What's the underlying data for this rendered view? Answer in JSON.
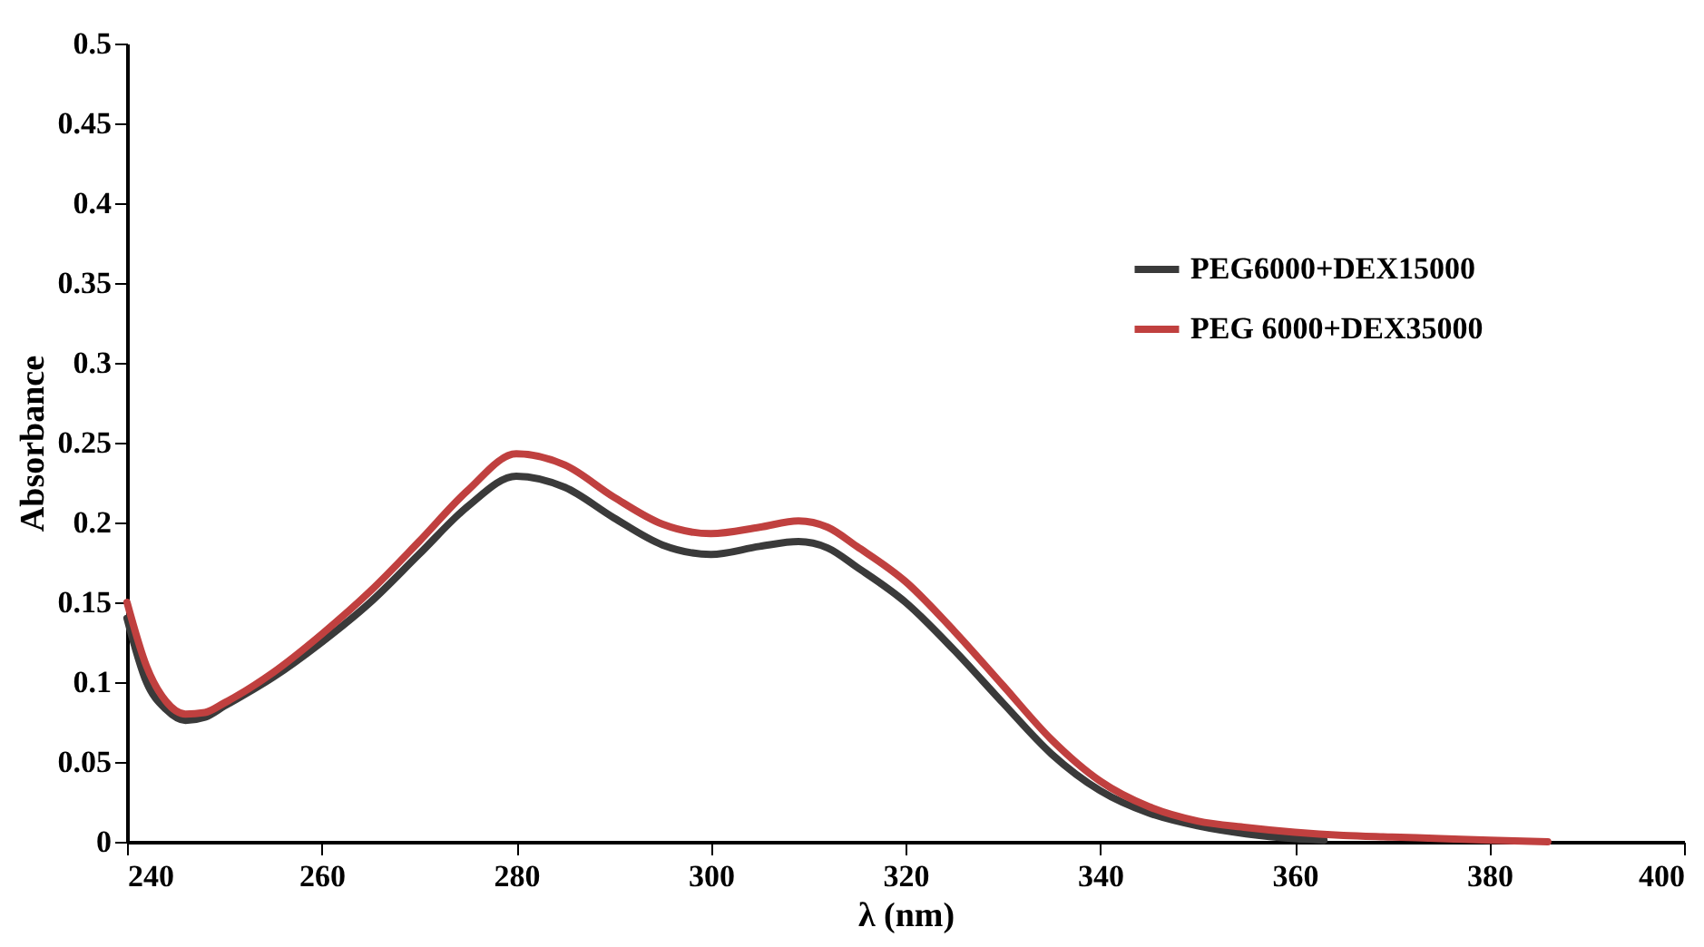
{
  "chart_data": {
    "type": "line",
    "xlabel": "λ (nm)",
    "ylabel": "Absorbance",
    "xlim": [
      240,
      400
    ],
    "xticks": [
      240,
      260,
      280,
      300,
      320,
      340,
      360,
      380,
      400
    ],
    "ylim": [
      0,
      0.5
    ],
    "yticks": [
      0,
      0.05,
      0.1,
      0.15,
      0.2,
      0.25,
      0.3,
      0.35,
      0.4,
      0.45,
      0.5
    ],
    "grid": false,
    "legend": "top right",
    "marker": "none",
    "line_style": "solid",
    "series": [
      {
        "name": "PEG6000+DEX15000",
        "color": "#3a3a3a",
        "x": [
          240,
          242,
          244,
          246,
          248,
          250,
          255,
          260,
          265,
          270,
          275,
          280,
          285,
          290,
          295,
          300,
          305,
          309,
          312,
          315,
          320,
          325,
          330,
          335,
          340,
          345,
          350,
          355,
          360,
          363
        ],
        "values": [
          0.14,
          0.1,
          0.083,
          0.076,
          0.078,
          0.085,
          0.103,
          0.125,
          0.15,
          0.18,
          0.21,
          0.229,
          0.222,
          0.203,
          0.186,
          0.18,
          0.185,
          0.188,
          0.184,
          0.172,
          0.15,
          0.12,
          0.087,
          0.055,
          0.032,
          0.018,
          0.01,
          0.005,
          0.002,
          0.001
        ]
      },
      {
        "name": "PEG 6000+DEX35000",
        "color": "#c0403f",
        "x": [
          240,
          242,
          244,
          246,
          248,
          250,
          255,
          260,
          265,
          270,
          275,
          280,
          285,
          290,
          295,
          300,
          305,
          309,
          312,
          315,
          320,
          325,
          330,
          335,
          340,
          345,
          350,
          355,
          360,
          365,
          370,
          375,
          380,
          386
        ],
        "values": [
          0.15,
          0.11,
          0.088,
          0.08,
          0.081,
          0.087,
          0.106,
          0.13,
          0.157,
          0.188,
          0.22,
          0.243,
          0.236,
          0.216,
          0.199,
          0.193,
          0.197,
          0.201,
          0.197,
          0.185,
          0.163,
          0.132,
          0.098,
          0.064,
          0.038,
          0.022,
          0.013,
          0.009,
          0.006,
          0.004,
          0.003,
          0.002,
          0.001,
          0.0
        ]
      }
    ]
  }
}
